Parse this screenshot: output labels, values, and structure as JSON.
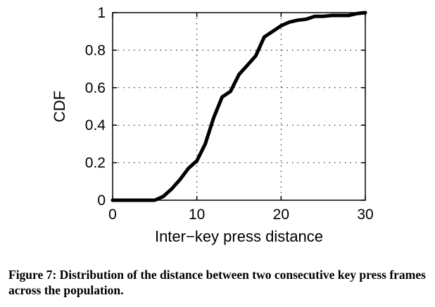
{
  "chart_data": {
    "type": "line",
    "xlabel": "Inter−key press distance",
    "ylabel": "CDF",
    "xlim": [
      0,
      30
    ],
    "ylim": [
      0,
      1
    ],
    "xticks": [
      "0",
      "10",
      "20",
      "30"
    ],
    "yticks": [
      "0",
      "0.2",
      "0.4",
      "0.6",
      "0.8",
      "1"
    ],
    "grid": true,
    "series": [
      {
        "x": [
          0,
          5,
          6,
          7,
          8,
          9,
          10,
          11,
          12,
          13,
          14,
          15,
          16,
          17,
          18,
          19,
          20,
          21,
          22,
          23,
          24,
          25,
          26,
          27,
          28,
          29,
          30
        ],
        "y": [
          0,
          0,
          0.02,
          0.06,
          0.11,
          0.17,
          0.21,
          0.3,
          0.44,
          0.55,
          0.58,
          0.67,
          0.72,
          0.77,
          0.87,
          0.9,
          0.93,
          0.95,
          0.96,
          0.965,
          0.98,
          0.98,
          0.985,
          0.985,
          0.985,
          0.995,
          1.0
        ]
      }
    ]
  },
  "caption": "Figure 7: Distribution of the distance between two consecutive key press frames across the population."
}
